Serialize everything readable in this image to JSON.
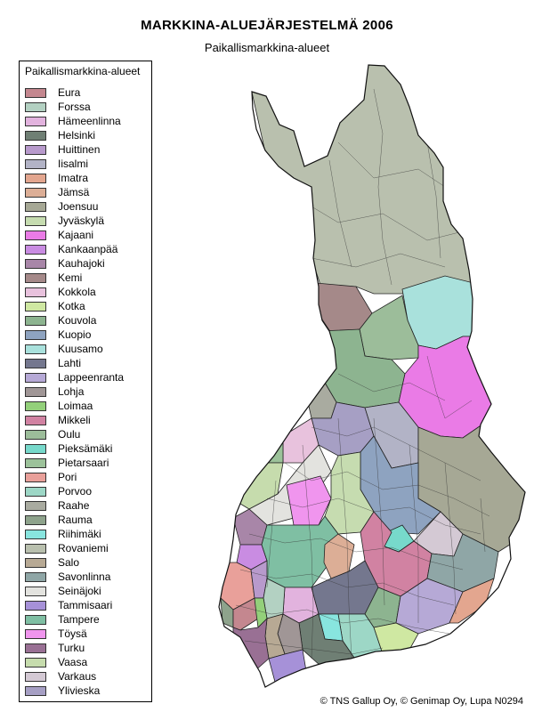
{
  "title": "MARKKINA-ALUEJÄRJESTELMÄ  2006",
  "subtitle": "Paikallismarkkina-alueet",
  "legend": {
    "title": "Paikallismarkkina-alueet",
    "items": [
      {
        "label": "Eura",
        "color": "#c4878f"
      },
      {
        "label": "Forssa",
        "color": "#b3d1c2"
      },
      {
        "label": "Hämeenlinna",
        "color": "#e2b3de"
      },
      {
        "label": "Helsinki",
        "color": "#6f7f74"
      },
      {
        "label": "Huittinen",
        "color": "#b89acc"
      },
      {
        "label": "Iisalmi",
        "color": "#b2b3c6"
      },
      {
        "label": "Imatra",
        "color": "#e3a68f"
      },
      {
        "label": "Jämsä",
        "color": "#dcae96"
      },
      {
        "label": "Joensuu",
        "color": "#a6a895"
      },
      {
        "label": "Jyväskylä",
        "color": "#c6dcb0"
      },
      {
        "label": "Kajaani",
        "color": "#ea7be6"
      },
      {
        "label": "Kankaanpää",
        "color": "#c98ce2"
      },
      {
        "label": "Kauhajoki",
        "color": "#a886a8"
      },
      {
        "label": "Kemi",
        "color": "#a58989"
      },
      {
        "label": "Kokkola",
        "color": "#e8c2dd"
      },
      {
        "label": "Kotka",
        "color": "#cfe8a2"
      },
      {
        "label": "Kouvola",
        "color": "#8db490"
      },
      {
        "label": "Kuopio",
        "color": "#8ea3c0"
      },
      {
        "label": "Kuusamo",
        "color": "#a9e1dc"
      },
      {
        "label": "Lahti",
        "color": "#74778e"
      },
      {
        "label": "Lappeenranta",
        "color": "#b6a9d6"
      },
      {
        "label": "Lohja",
        "color": "#a09696"
      },
      {
        "label": "Loimaa",
        "color": "#93d07a"
      },
      {
        "label": "Mikkeli",
        "color": "#d182a2"
      },
      {
        "label": "Oulu",
        "color": "#9cbd9a"
      },
      {
        "label": "Pieksämäki",
        "color": "#77d9cb"
      },
      {
        "label": "Pietarsaari",
        "color": "#9cc29a"
      },
      {
        "label": "Pori",
        "color": "#e9a09a"
      },
      {
        "label": "Porvoo",
        "color": "#9dd7c6"
      },
      {
        "label": "Raahe",
        "color": "#a9aba0"
      },
      {
        "label": "Rauma",
        "color": "#8ea38c"
      },
      {
        "label": "Riihimäki",
        "color": "#88e5df"
      },
      {
        "label": "Rovaniemi",
        "color": "#b9c0ae"
      },
      {
        "label": "Salo",
        "color": "#b7a994"
      },
      {
        "label": "Savonlinna",
        "color": "#8fa6a6"
      },
      {
        "label": "Seinäjoki",
        "color": "#e3e3df"
      },
      {
        "label": "Tammisaari",
        "color": "#a691d8"
      },
      {
        "label": "Tampere",
        "color": "#7fbfa3"
      },
      {
        "label": "Töysä",
        "color": "#f095ee"
      },
      {
        "label": "Turku",
        "color": "#997094"
      },
      {
        "label": "Vaasa",
        "color": "#c6dcad"
      },
      {
        "label": "Varkaus",
        "color": "#d4c9d4"
      },
      {
        "label": "Ylivieska",
        "color": "#a69fc4"
      }
    ]
  },
  "copyright": "© TNS Gallup Oy,  © Genimap Oy, Lupa N0294"
}
